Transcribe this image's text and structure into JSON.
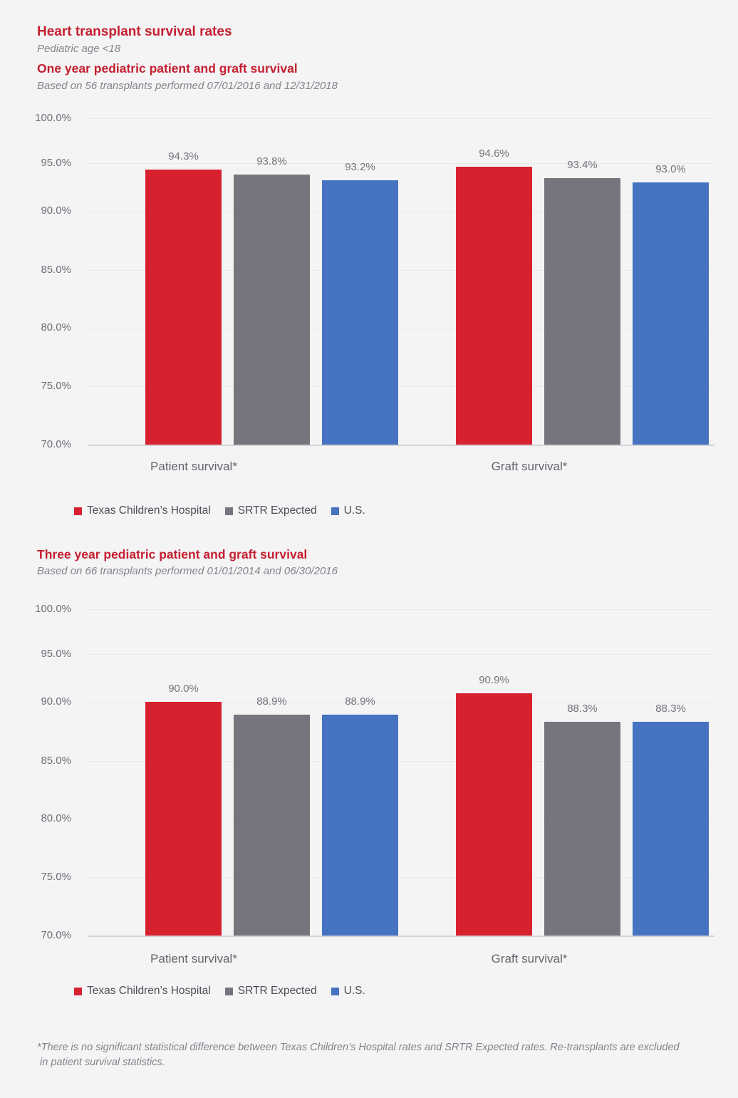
{
  "page": {
    "title": "Heart transplant survival rates",
    "subtitle": "Pediatric age <18",
    "footnote_line1": "*There is no significant statistical difference between Texas Children’s Hospital rates and SRTR Expected rates. Re-transplants are excluded",
    "footnote_line2": " in patient survival statistics."
  },
  "colors": {
    "heading_red": "#c51f30",
    "bar_red": "#d8212f",
    "bar_gray": "#76757e",
    "bar_blue": "#4573c1",
    "background": "#f4f4f5"
  },
  "chart_data": [
    {
      "type": "bar",
      "title": "One year pediatric patient and graft survival",
      "subtitle": "Based on 56 transplants performed 07/01/2016 and 12/31/2018",
      "categories": [
        "Patient survival*",
        "Graft survival*"
      ],
      "series": [
        {
          "name": "Texas Children’s Hospital",
          "color": "#d8212f",
          "values": [
            94.3,
            94.6
          ]
        },
        {
          "name": "SRTR Expected",
          "color": "#76757e",
          "values": [
            93.8,
            93.4
          ]
        },
        {
          "name": "U.S.",
          "color": "#4573c1",
          "values": [
            93.2,
            93.0
          ]
        }
      ],
      "value_labels": [
        [
          "94.3%",
          "94.6%"
        ],
        [
          "93.8%",
          "93.4%"
        ],
        [
          "93.2%",
          "93.0%"
        ]
      ],
      "ylim": [
        70,
        100
      ],
      "yticks": [
        "100.0%",
        "95.0%",
        "90.0%",
        "85.0%",
        "80.0%",
        "75.0%",
        "70.0%"
      ],
      "grid": true,
      "legend_position": "bottom"
    },
    {
      "type": "bar",
      "title": "Three year pediatric patient and graft survival",
      "subtitle": "Based on 66 transplants performed 01/01/2014 and 06/30/2016",
      "categories": [
        "Patient survival*",
        "Graft survival*"
      ],
      "series": [
        {
          "name": "Texas Children’s Hospital",
          "color": "#d8212f",
          "values": [
            90.0,
            90.9
          ]
        },
        {
          "name": "SRTR Expected",
          "color": "#76757e",
          "values": [
            88.9,
            88.3
          ]
        },
        {
          "name": "U.S.",
          "color": "#4573c1",
          "values": [
            88.9,
            88.3
          ]
        }
      ],
      "value_labels": [
        [
          "90.0%",
          "90.9%"
        ],
        [
          "88.9%",
          "88.3%"
        ],
        [
          "88.9%",
          "88.3%"
        ]
      ],
      "ylim": [
        70,
        100
      ],
      "yticks": [
        "100.0%",
        "95.0%",
        "90.0%",
        "85.0%",
        "80.0%",
        "75.0%",
        "70.0%"
      ],
      "grid": true,
      "legend_position": "bottom"
    }
  ]
}
